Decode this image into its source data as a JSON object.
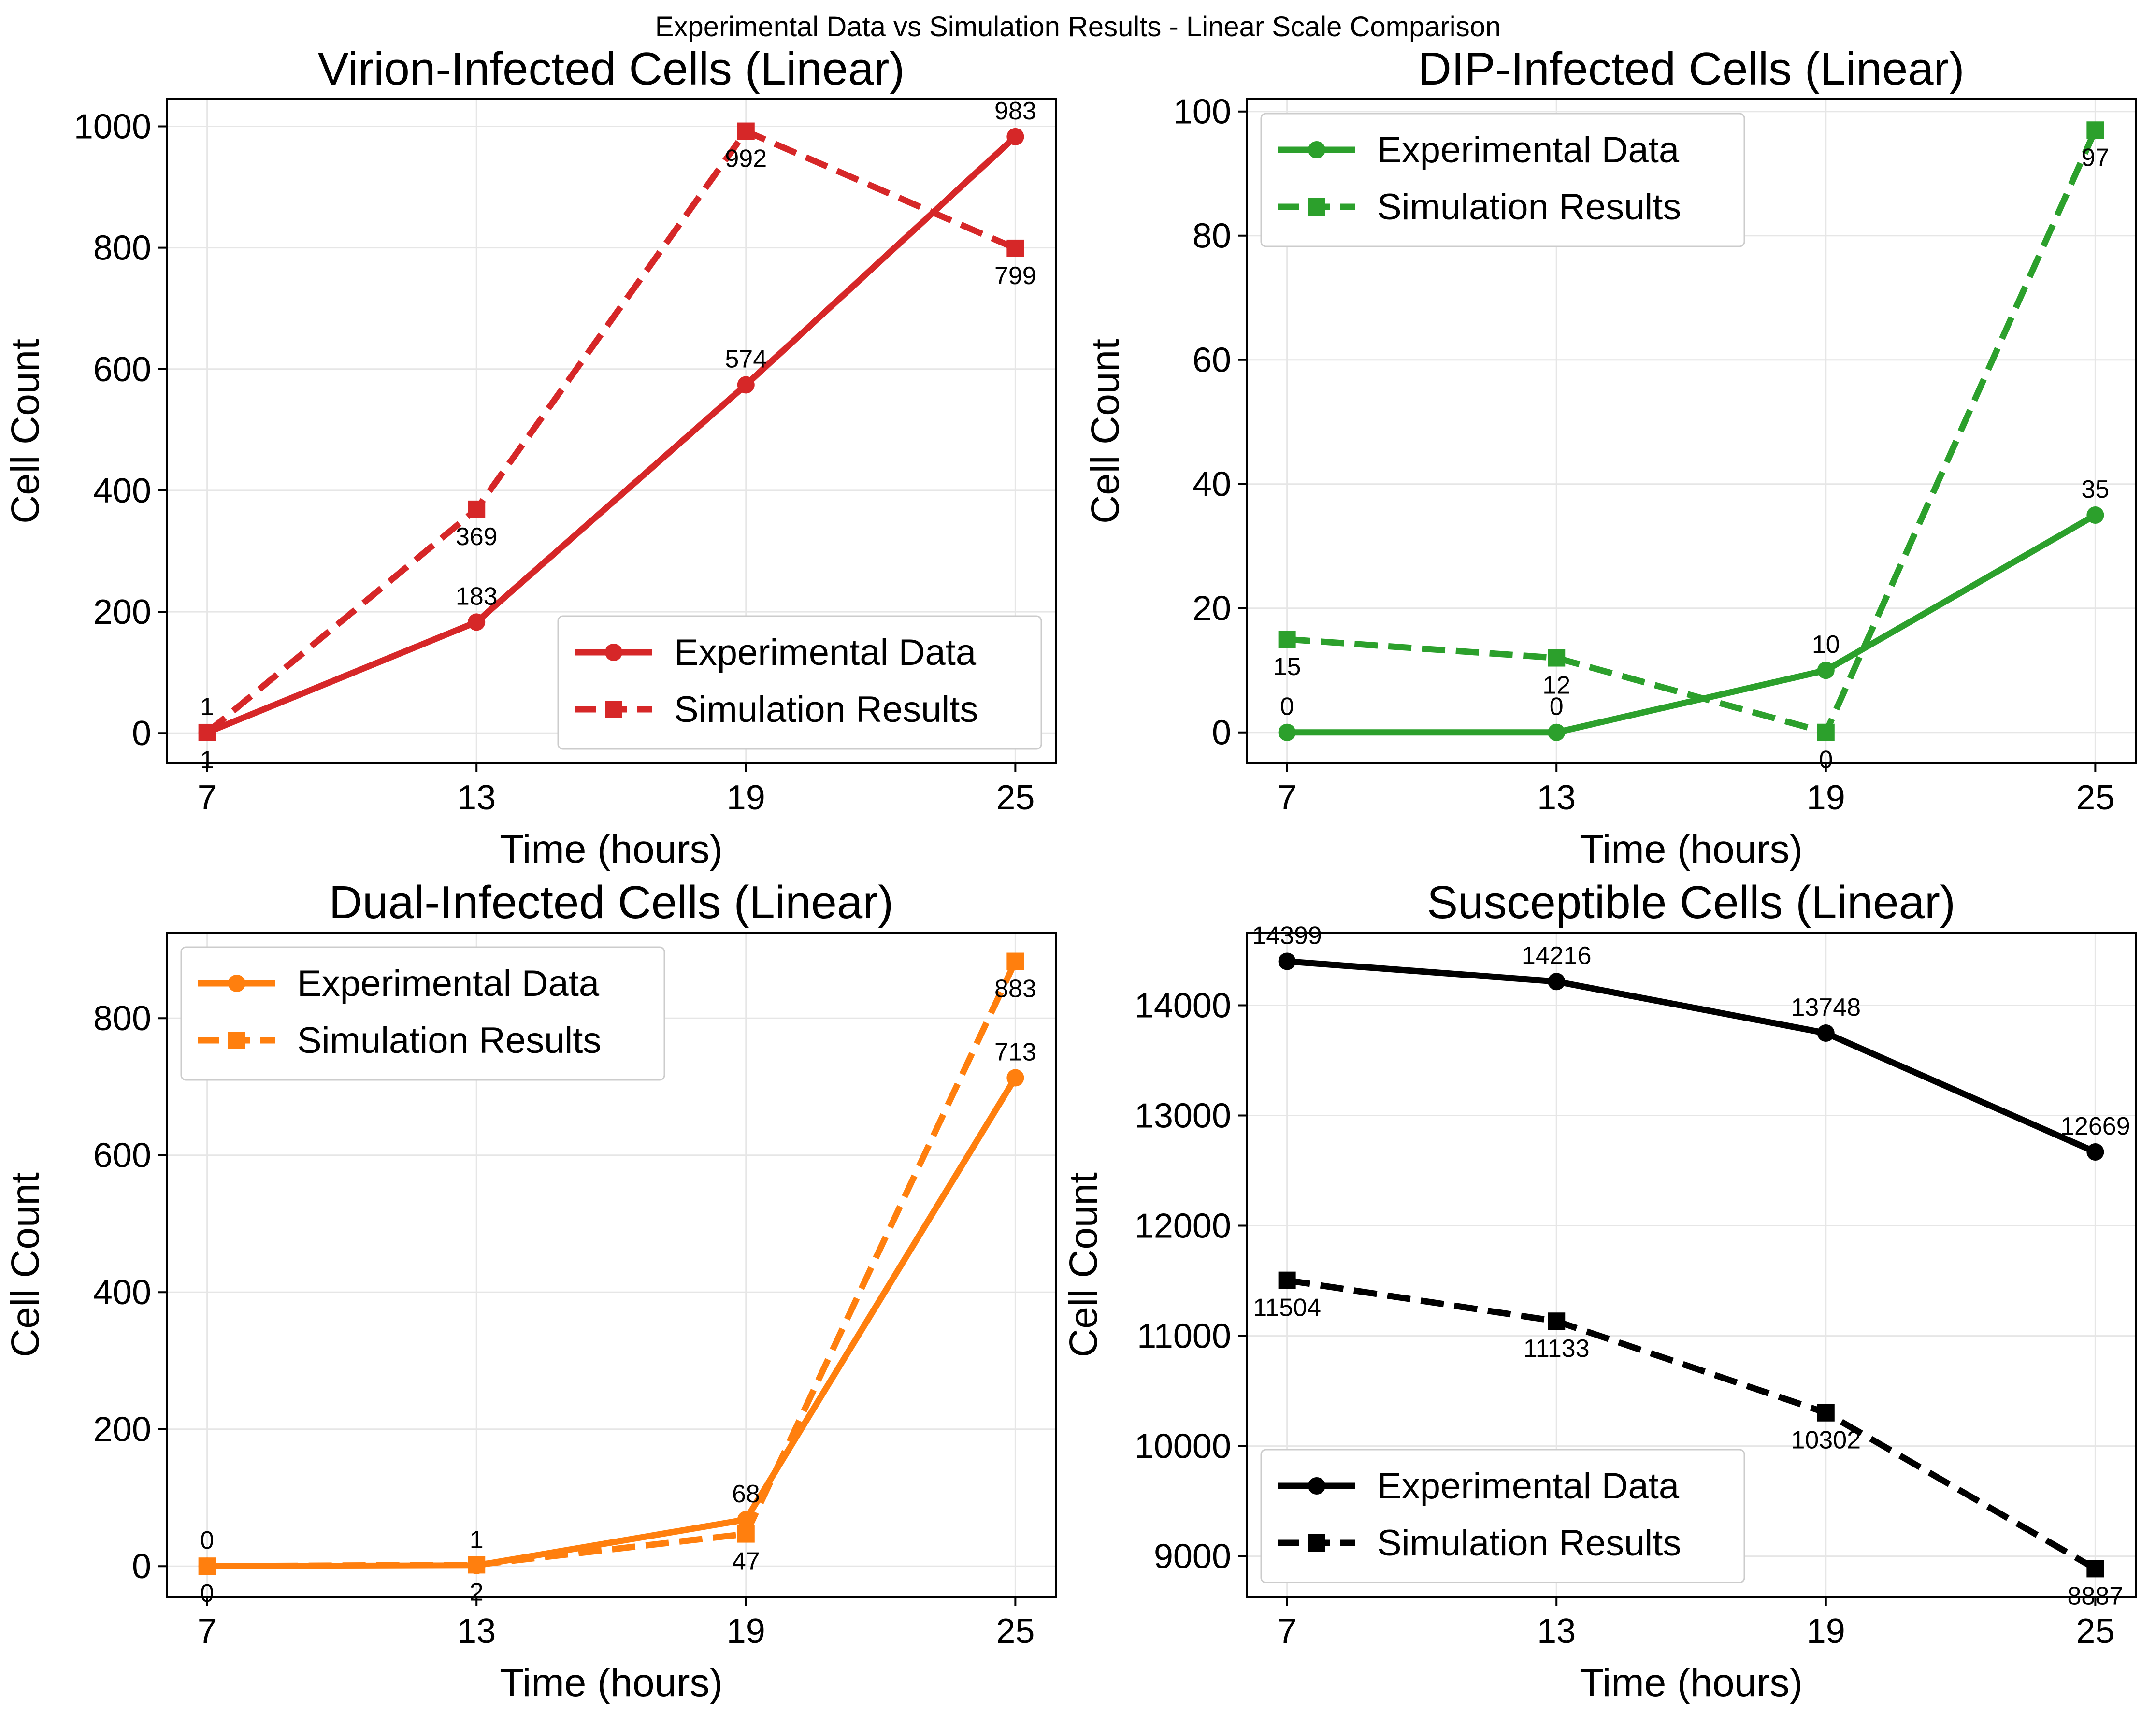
{
  "figure_title": "Experimental Data vs Simulation Results - Linear Scale Comparison",
  "colors": {
    "virion": "#d62728",
    "dip": "#2ca02c",
    "dual": "#ff7f0e",
    "susceptible": "#000000"
  },
  "chart_data": [
    {
      "id": "virion",
      "type": "line",
      "title": "Virion-Infected Cells (Linear)",
      "xlabel": "Time (hours)",
      "ylabel": "Cell Count",
      "x": [
        7,
        13,
        19,
        25
      ],
      "xticks": [
        "7",
        "13",
        "19",
        "25"
      ],
      "yticks": [
        "0",
        "200",
        "400",
        "600",
        "800",
        "1000"
      ],
      "xlim": [
        6.1,
        25.9
      ],
      "ylim": [
        -50,
        1045
      ],
      "grid": true,
      "color": "#d62728",
      "legend_position": "lower-right",
      "series": [
        {
          "name": "Experimental Data",
          "style": "solid",
          "marker": "circle",
          "values": [
            1,
            183,
            574,
            983
          ],
          "labels": [
            "1",
            "183",
            "574",
            "983"
          ],
          "label_pos": "above"
        },
        {
          "name": "Simulation Results",
          "style": "dashed",
          "marker": "square",
          "values": [
            1,
            369,
            992,
            799
          ],
          "labels": [
            "1",
            "369",
            "992",
            "799"
          ],
          "label_pos": "below"
        }
      ]
    },
    {
      "id": "dip",
      "type": "line",
      "title": "DIP-Infected Cells (Linear)",
      "xlabel": "Time (hours)",
      "ylabel": "Cell Count",
      "x": [
        7,
        13,
        19,
        25
      ],
      "xticks": [
        "7",
        "13",
        "19",
        "25"
      ],
      "yticks": [
        "0",
        "20",
        "40",
        "60",
        "80",
        "100"
      ],
      "xlim": [
        6.1,
        25.9
      ],
      "ylim": [
        -5,
        102
      ],
      "grid": true,
      "color": "#2ca02c",
      "legend_position": "upper-left",
      "series": [
        {
          "name": "Experimental Data",
          "style": "solid",
          "marker": "circle",
          "values": [
            0,
            0,
            10,
            35
          ],
          "labels": [
            "0",
            "0",
            "10",
            "35"
          ],
          "label_pos": "above"
        },
        {
          "name": "Simulation Results",
          "style": "dashed",
          "marker": "square",
          "values": [
            15,
            12,
            0,
            97
          ],
          "labels": [
            "15",
            "12",
            "0",
            "97"
          ],
          "label_pos": "below"
        }
      ]
    },
    {
      "id": "dual",
      "type": "line",
      "title": "Dual-Infected Cells (Linear)",
      "xlabel": "Time (hours)",
      "ylabel": "Cell Count",
      "x": [
        7,
        13,
        19,
        25
      ],
      "xticks": [
        "7",
        "13",
        "19",
        "25"
      ],
      "yticks": [
        "0",
        "200",
        "400",
        "600",
        "800"
      ],
      "xlim": [
        6.1,
        25.9
      ],
      "ylim": [
        -45,
        925
      ],
      "grid": true,
      "color": "#ff7f0e",
      "legend_position": "upper-left",
      "series": [
        {
          "name": "Experimental Data",
          "style": "solid",
          "marker": "circle",
          "values": [
            0,
            1,
            68,
            713
          ],
          "labels": [
            "0",
            "1",
            "68",
            "713"
          ],
          "label_pos": "above"
        },
        {
          "name": "Simulation Results",
          "style": "dashed",
          "marker": "square",
          "values": [
            0,
            2,
            47,
            883
          ],
          "labels": [
            "0",
            "2",
            "47",
            "883"
          ],
          "label_pos": "below"
        }
      ]
    },
    {
      "id": "susceptible",
      "type": "line",
      "title": "Susceptible Cells (Linear)",
      "xlabel": "Time (hours)",
      "ylabel": "Cell Count",
      "x": [
        7,
        13,
        19,
        25
      ],
      "xticks": [
        "7",
        "13",
        "19",
        "25"
      ],
      "yticks": [
        "9000",
        "10000",
        "11000",
        "12000",
        "13000",
        "14000"
      ],
      "xlim": [
        6.1,
        25.9
      ],
      "ylim": [
        8630,
        14660
      ],
      "grid": true,
      "color": "#000000",
      "legend_position": "lower-left",
      "series": [
        {
          "name": "Experimental Data",
          "style": "solid",
          "marker": "circle",
          "values": [
            14399,
            14216,
            13748,
            12669
          ],
          "labels": [
            "14399",
            "14216",
            "13748",
            "12669"
          ],
          "label_pos": "above"
        },
        {
          "name": "Simulation Results",
          "style": "dashed",
          "marker": "square",
          "values": [
            11504,
            11133,
            10302,
            8887
          ],
          "labels": [
            "11504",
            "11133",
            "10302",
            "8887"
          ],
          "label_pos": "below"
        }
      ]
    }
  ]
}
